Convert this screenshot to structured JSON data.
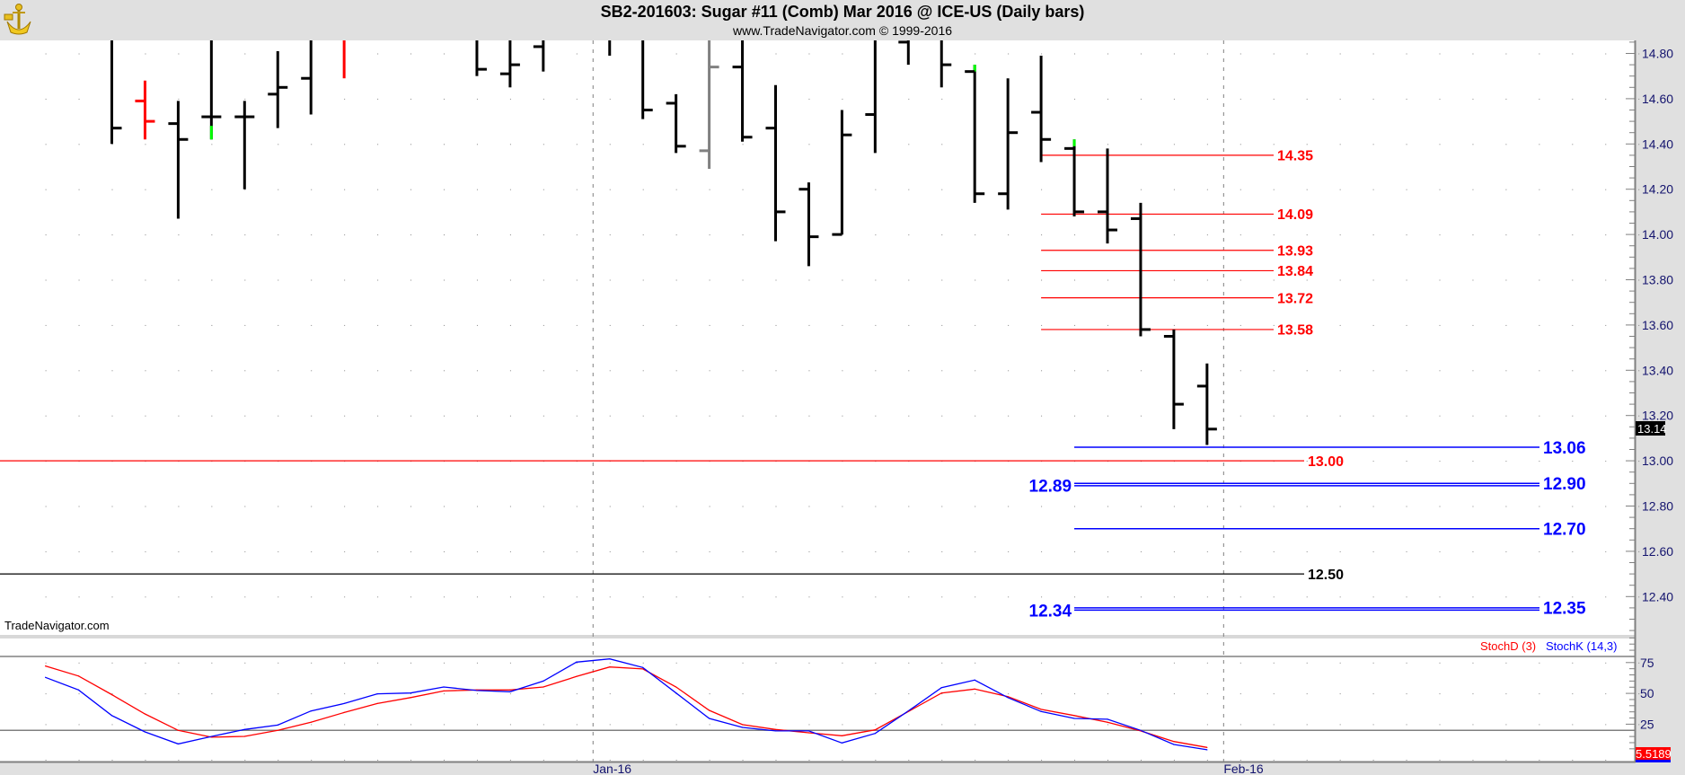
{
  "header": {
    "title": "SB2-201603:  Sugar #11 (Comb) Mar 2016 @ ICE-US  (Daily bars)",
    "subtitle": "www.TradeNavigator.com © 1999-2016"
  },
  "watermark": "TradeNavigator.com",
  "colors": {
    "up": "#000000",
    "red": "#ff0000",
    "blue": "#0000ff",
    "gray": "#808080",
    "green": "#00ff00",
    "axis_text": "#14146e"
  },
  "chart_data": {
    "type": "ohlc",
    "title": "SB2-201603: Sugar #11 (Comb) Mar 2016 @ ICE-US (Daily bars)",
    "price_axis": {
      "max": 14.86,
      "min": 12.24,
      "ticks": [
        "14.80",
        "14.60",
        "14.40",
        "14.20",
        "14.00",
        "13.80",
        "13.60",
        "13.40",
        "13.20",
        "13.00",
        "12.80",
        "12.60",
        "12.40"
      ]
    },
    "last_price": "13.14",
    "first_index": -2,
    "bars": [
      null,
      null,
      {
        "o": null,
        "h": null,
        "l": 14.4,
        "c": 14.47,
        "color": "#000000"
      },
      {
        "o": 14.59,
        "h": 14.68,
        "l": 14.42,
        "c": 14.5,
        "color": "#ff0000"
      },
      {
        "o": 14.49,
        "h": 14.59,
        "l": 14.07,
        "c": 14.42,
        "color": "#000000"
      },
      {
        "o": 14.52,
        "h": null,
        "l": 14.42,
        "c": 14.52,
        "color": "#000000",
        "green": [
          14.48,
          14.42
        ]
      },
      {
        "o": 14.52,
        "h": 14.59,
        "l": 14.2,
        "c": 14.52,
        "color": "#000000"
      },
      {
        "o": 14.62,
        "h": 14.81,
        "l": 14.47,
        "c": 14.65,
        "color": "#000000"
      },
      {
        "o": 14.69,
        "h": null,
        "l": 14.53,
        "c": null,
        "color": "#000000"
      },
      {
        "o": null,
        "h": null,
        "l": 14.69,
        "c": null,
        "color": "#ff0000"
      },
      null,
      null,
      null,
      {
        "o": null,
        "h": null,
        "l": 14.7,
        "c": 14.73,
        "color": "#000000"
      },
      {
        "o": 14.71,
        "h": null,
        "l": 14.65,
        "c": 14.75,
        "color": "#000000"
      },
      {
        "o": 14.83,
        "h": null,
        "l": 14.72,
        "c": null,
        "color": "#000000"
      },
      null,
      {
        "o": null,
        "h": null,
        "l": 14.79,
        "c": null,
        "color": "#000000"
      },
      {
        "o": null,
        "h": null,
        "l": 14.51,
        "c": 14.55,
        "color": "#000000"
      },
      {
        "o": 14.58,
        "h": 14.62,
        "l": 14.36,
        "c": 14.39,
        "color": "#000000"
      },
      {
        "o": 14.37,
        "h": null,
        "l": 14.29,
        "c": 14.74,
        "color": "#808080"
      },
      {
        "o": 14.74,
        "h": null,
        "l": 14.41,
        "c": 14.43,
        "color": "#000000"
      },
      {
        "o": 14.47,
        "h": 14.66,
        "l": 13.97,
        "c": 14.1,
        "color": "#000000"
      },
      {
        "o": 14.2,
        "h": 14.23,
        "l": 13.86,
        "c": 13.99,
        "color": "#000000"
      },
      {
        "o": 14.0,
        "h": 14.55,
        "l": 14.0,
        "c": 14.44,
        "color": "#000000"
      },
      {
        "o": 14.53,
        "h": null,
        "l": 14.36,
        "c": null,
        "color": "#000000"
      },
      {
        "o": 14.85,
        "h": null,
        "l": 14.75,
        "c": null,
        "color": "#000000"
      },
      {
        "o": null,
        "h": null,
        "l": 14.65,
        "c": 14.75,
        "color": "#000000"
      },
      {
        "o": 14.72,
        "h": 14.75,
        "l": 14.14,
        "c": 14.18,
        "color": "#000000",
        "green": [
          14.75,
          14.72
        ]
      },
      {
        "o": 14.18,
        "h": 14.69,
        "l": 14.11,
        "c": 14.45,
        "color": "#000000"
      },
      {
        "o": 14.54,
        "h": 14.79,
        "l": 14.32,
        "c": 14.42,
        "color": "#000000"
      },
      {
        "o": 14.38,
        "h": 14.42,
        "l": 14.08,
        "c": 14.1,
        "color": "#000000",
        "green": [
          14.42,
          14.39
        ]
      },
      {
        "o": 14.1,
        "h": 14.38,
        "l": 13.96,
        "c": 14.02,
        "color": "#000000"
      },
      {
        "o": 14.07,
        "h": 14.14,
        "l": 13.55,
        "c": 13.58,
        "color": "#000000"
      },
      {
        "o": 13.55,
        "h": 13.58,
        "l": 13.14,
        "c": 13.25,
        "color": "#000000"
      },
      {
        "o": 13.33,
        "h": 13.43,
        "l": 13.07,
        "c": 13.14,
        "color": "#000000"
      }
    ],
    "levels": [
      {
        "value": 14.35,
        "label": "14.35",
        "color": "#ff0000",
        "from_index": 28,
        "span": "short",
        "label_side": "right"
      },
      {
        "value": 14.09,
        "label": "14.09",
        "color": "#ff0000",
        "from_index": 28,
        "span": "short",
        "label_side": "right"
      },
      {
        "value": 13.93,
        "label": "13.93",
        "color": "#ff0000",
        "from_index": 28,
        "span": "short",
        "label_side": "right"
      },
      {
        "value": 13.84,
        "label": "13.84",
        "color": "#ff0000",
        "from_index": 28,
        "span": "short",
        "label_side": "right"
      },
      {
        "value": 13.72,
        "label": "13.72",
        "color": "#ff0000",
        "from_index": 28,
        "span": "short",
        "label_side": "right"
      },
      {
        "value": 13.58,
        "label": "13.58",
        "color": "#ff0000",
        "from_index": 28,
        "span": "short",
        "label_side": "right"
      },
      {
        "value": 13.0,
        "label": "13.00",
        "color": "#ff0000",
        "from_index": null,
        "span": "mid",
        "label_side": "right"
      },
      {
        "value": 12.5,
        "label": "12.50",
        "color": "#000000",
        "from_index": null,
        "span": "mid",
        "label_side": "right"
      },
      {
        "value": 13.06,
        "label": "13.06",
        "color": "#0000ff",
        "from_index": 29,
        "span": "long",
        "label_side": "right"
      },
      {
        "value": 12.9,
        "label": "12.90",
        "color": "#0000ff",
        "from_index": 29,
        "span": "long",
        "label_side": "right"
      },
      {
        "value": 12.89,
        "label": "12.89",
        "color": "#0000ff",
        "from_index": 29,
        "span": "long",
        "label_side": "left"
      },
      {
        "value": 12.7,
        "label": "12.70",
        "color": "#0000ff",
        "from_index": 29,
        "span": "long",
        "label_side": "right"
      },
      {
        "value": 12.35,
        "label": "12.35",
        "color": "#0000ff",
        "from_index": 29,
        "span": "long",
        "label_side": "right"
      },
      {
        "value": 12.34,
        "label": "12.34",
        "color": "#0000ff",
        "from_index": 29,
        "span": "long",
        "label_side": "left"
      }
    ],
    "x_labels": [
      {
        "label": "Jan-16",
        "at_index": 14.5
      },
      {
        "label": "Feb-16",
        "at_index": 33.5
      }
    ],
    "stochastic": {
      "legend_d": "StochD (3)",
      "legend_k": "StochK (14,3)",
      "ticks": [
        "75",
        "50",
        "25"
      ],
      "bands": [
        80,
        20
      ],
      "last_value": "5.5189",
      "k": [
        63,
        52.8,
        32,
        18.7,
        9,
        15,
        20.7,
        24.3,
        35.7,
        41.8,
        49.6,
        50.3,
        55.2,
        52.3,
        51.3,
        60,
        75.4,
        78,
        71,
        50.3,
        29.7,
        22.4,
        19.5,
        19.5,
        9.8,
        17.5,
        35.7,
        54.7,
        60.8,
        46.6,
        35.3,
        29.7,
        29,
        20,
        8.5,
        4.2
      ],
      "d": [
        72.2,
        64.1,
        49,
        33.3,
        20,
        14.4,
        15.1,
        20,
        26.5,
        34.5,
        41.8,
        46.6,
        52,
        52.8,
        52.8,
        55.2,
        63.7,
        71.4,
        69.8,
        55.2,
        36.2,
        24.6,
        20.7,
        18,
        15.6,
        20.4,
        35.3,
        50.3,
        53.5,
        47.4,
        37,
        32,
        26.5,
        19.5,
        10.9,
        6.1
      ]
    }
  }
}
